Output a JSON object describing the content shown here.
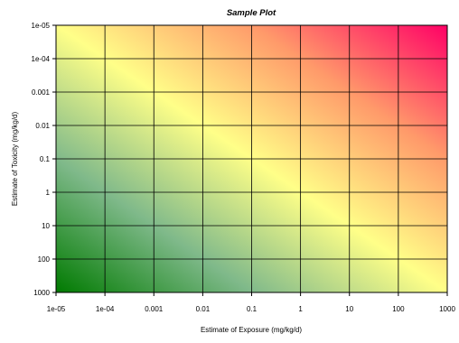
{
  "chart_data": {
    "type": "heatmap",
    "title": "Sample Plot",
    "xlabel": "Estimate of Exposure (mg/kg/d)",
    "ylabel": "Estimate of Toxicity (mg/kg/d)",
    "x_scale": "log",
    "y_scale": "log",
    "y_inverted": true,
    "xlim": [
      1e-05,
      1000
    ],
    "ylim": [
      1000,
      1e-05
    ],
    "x_ticks": [
      {
        "value": 1e-05,
        "label": "1e-05"
      },
      {
        "value": 0.0001,
        "label": "1e-04"
      },
      {
        "value": 0.001,
        "label": "0.001"
      },
      {
        "value": 0.01,
        "label": "0.01"
      },
      {
        "value": 0.1,
        "label": "0.1"
      },
      {
        "value": 1,
        "label": "1"
      },
      {
        "value": 10,
        "label": "10"
      },
      {
        "value": 100,
        "label": "100"
      },
      {
        "value": 1000,
        "label": "1000"
      }
    ],
    "y_ticks": [
      {
        "value": 1e-05,
        "label": "1e-05"
      },
      {
        "value": 0.0001,
        "label": "1e-04"
      },
      {
        "value": 0.001,
        "label": "0.001"
      },
      {
        "value": 0.01,
        "label": "0.01"
      },
      {
        "value": 0.1,
        "label": "0.1"
      },
      {
        "value": 1,
        "label": "1"
      },
      {
        "value": 10,
        "label": "10"
      },
      {
        "value": 100,
        "label": "100"
      },
      {
        "value": 1000,
        "label": "1000"
      }
    ],
    "grid": true,
    "legend": "none",
    "color_gradient": {
      "description": "diagonal gradient from low exposure / high toxicity value to high exposure / low toxicity value",
      "stops": [
        "#007a00",
        "#7fb98a",
        "#ffff88",
        "#ff9a6a",
        "#ff0066"
      ]
    }
  }
}
